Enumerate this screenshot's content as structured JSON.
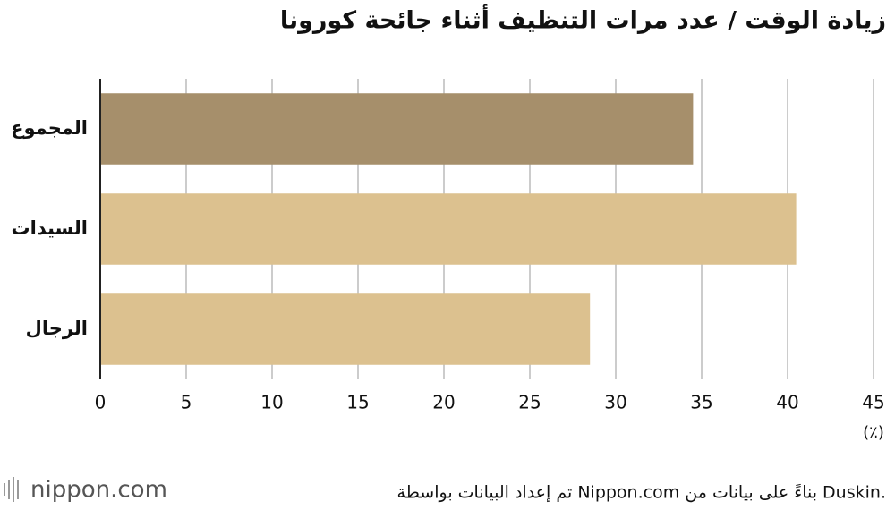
{
  "chart_data": {
    "type": "barh",
    "title": "زيادة الوقت / عدد مرات التنظيف أثناء جائحة كورونا",
    "categories": [
      "المجموع",
      "السيدات",
      "الرجال"
    ],
    "values": [
      34.5,
      40.5,
      28.5
    ],
    "colors": [
      "#a68f6b",
      "#dcc18f",
      "#dcc18f"
    ],
    "xlim": [
      0,
      45
    ],
    "xticks": [
      0,
      5,
      10,
      15,
      20,
      25,
      30,
      35,
      40,
      45
    ],
    "xlabel": "(٪)",
    "grid": true,
    "source": "تم إعداد البيانات بواسطة Nippon.com بناءً على بيانات من Duskin.",
    "logo": "nippon.com"
  }
}
